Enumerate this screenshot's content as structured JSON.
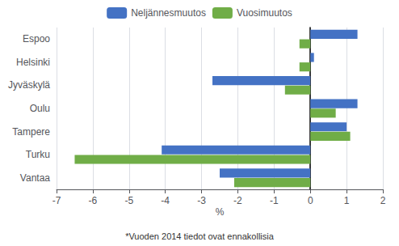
{
  "chart_data": {
    "type": "bar",
    "orientation": "horizontal",
    "categories": [
      "Espoo",
      "Helsinki",
      "Jyväskylä",
      "Oulu",
      "Tampere",
      "Turku",
      "Vantaa"
    ],
    "series": [
      {
        "name": "Neljännesmuutos",
        "color": "#4472C4",
        "values": [
          1.3,
          0.1,
          -2.7,
          1.3,
          1.0,
          -4.1,
          -2.5
        ]
      },
      {
        "name": "Vuosimuutos",
        "color": "#70AD47",
        "values": [
          -0.3,
          -0.3,
          -0.7,
          0.7,
          1.1,
          -6.5,
          -2.1
        ]
      }
    ],
    "xlabel": "%",
    "xlim": [
      -7,
      2
    ],
    "xticks": [
      -7,
      -6,
      -5,
      -4,
      -3,
      -2,
      -1,
      0,
      1,
      2
    ],
    "grid": true,
    "legend": "top",
    "footnote": "*Vuoden 2014 tiedot ovat ennakollisia"
  }
}
